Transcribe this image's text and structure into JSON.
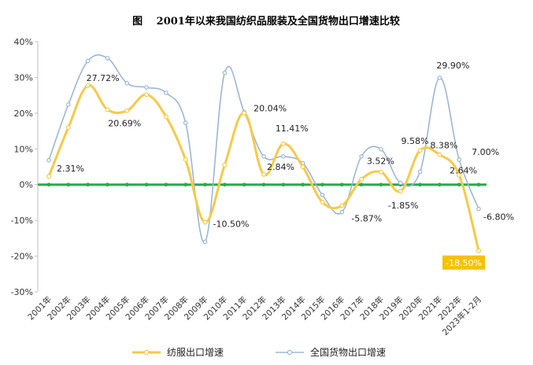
{
  "chart_data": {
    "type": "line",
    "title": "图　 2001年以来我国纺织品服装及全国货物出口增速比较",
    "xlabel": "",
    "ylabel": "",
    "ylim": [
      -30,
      40
    ],
    "ytick_step": 10,
    "yticks": [
      "40%",
      "30%",
      "20%",
      "10%",
      "0%",
      "-10%",
      "-20%",
      "-30%"
    ],
    "categories": [
      "2001年",
      "2002年",
      "2003年",
      "2004年",
      "2005年",
      "2006年",
      "2007年",
      "2008年",
      "2009年",
      "2010年",
      "2011年",
      "2012年",
      "2013年",
      "2014年",
      "2015年",
      "2016年",
      "2017年",
      "2018年",
      "2019年",
      "2020年",
      "2021年",
      "2022年",
      "2023年1-2月"
    ],
    "series": [
      {
        "name": "纺服出口增速",
        "color": "#F7C948",
        "values": [
          2.31,
          16.0,
          27.72,
          21.0,
          20.69,
          25.2,
          19.0,
          7.0,
          -10.5,
          5.5,
          20.04,
          2.84,
          11.41,
          5.0,
          -4.9,
          -5.87,
          1.5,
          3.52,
          -1.85,
          9.58,
          8.38,
          2.64,
          -18.5
        ]
      },
      {
        "name": "全国货物出口增速",
        "color": "#9DB6D3",
        "values": [
          6.8,
          22.4,
          34.6,
          35.4,
          28.4,
          27.2,
          25.7,
          17.3,
          -16.0,
          31.3,
          20.3,
          7.9,
          7.9,
          6.0,
          -2.9,
          -7.7,
          7.9,
          9.9,
          0.5,
          3.6,
          29.9,
          7.0,
          -6.8
        ]
      }
    ],
    "annotations": [
      {
        "series": 0,
        "index": 0,
        "text": "2.31%"
      },
      {
        "series": 0,
        "index": 2,
        "text": "27.72%"
      },
      {
        "series": 0,
        "index": 4,
        "text": "20.69%"
      },
      {
        "series": 0,
        "index": 8,
        "text": "-10.50%"
      },
      {
        "series": 0,
        "index": 10,
        "text": "20.04%"
      },
      {
        "series": 0,
        "index": 11,
        "text": "2.84%"
      },
      {
        "series": 0,
        "index": 12,
        "text": "11.41%"
      },
      {
        "series": 0,
        "index": 15,
        "text": "-5.87%"
      },
      {
        "series": 0,
        "index": 17,
        "text": "3.52%"
      },
      {
        "series": 0,
        "index": 18,
        "text": "-1.85%"
      },
      {
        "series": 0,
        "index": 19,
        "text": "9.58%"
      },
      {
        "series": 0,
        "index": 20,
        "text": "8.38%"
      },
      {
        "series": 0,
        "index": 21,
        "text": "2.64%"
      },
      {
        "series": 0,
        "index": 22,
        "text": "-18.50%",
        "highlight": true
      },
      {
        "series": 1,
        "index": 20,
        "text": "29.90%"
      },
      {
        "series": 1,
        "index": 21,
        "text": "7.00%"
      },
      {
        "series": 1,
        "index": 22,
        "text": "-6.80%"
      }
    ],
    "zero_line_color": "#1DB04A",
    "highlight_color": "#F7C200",
    "grid": false,
    "legend_position": "bottom"
  }
}
